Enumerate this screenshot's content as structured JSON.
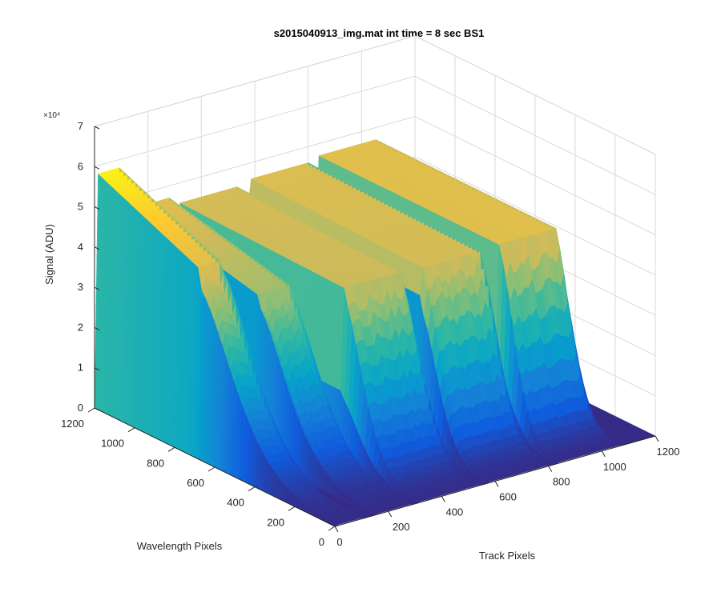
{
  "chart_data": {
    "type": "surface",
    "title": "s2015040913_img.mat int time = 8 sec   BS1",
    "xlabel": "Track Pixels",
    "ylabel": "Wavelength Pixels",
    "zlabel": "Signal (ADU)",
    "z_exponent_label": "×10⁴",
    "xlim": [
      0,
      1200
    ],
    "ylim": [
      0,
      1200
    ],
    "zlim": [
      0,
      70000
    ],
    "x_ticks": [
      "0",
      "200",
      "400",
      "600",
      "800",
      "1000",
      "1200"
    ],
    "y_ticks": [
      "0",
      "200",
      "400",
      "600",
      "800",
      "1000",
      "1200"
    ],
    "z_ticks": [
      "0",
      "1",
      "2",
      "3",
      "4",
      "5",
      "6",
      "7"
    ],
    "grid": true,
    "colormap": "parula",
    "colors": [
      "#352a87",
      "#0f5cdd",
      "#1481d6",
      "#06a4ca",
      "#2eb7a4",
      "#87bf77",
      "#d1bb59",
      "#fec832",
      "#f9fb0e"
    ],
    "tracks": [
      {
        "x_range": [
          0,
          110
        ],
        "peak": 58000,
        "plateau": 47000,
        "falloff_wavelength": 700
      },
      {
        "x_range": [
          150,
          300
        ],
        "peak": 47000,
        "plateau": 40000,
        "falloff_wavelength": 600
      },
      {
        "x_range": [
          300,
          560
        ],
        "peak": 45000,
        "plateau": 44000,
        "falloff_wavelength": 380
      },
      {
        "x_range": [
          560,
          820
        ],
        "peak": 46000,
        "plateau": 45000,
        "falloff_wavelength": 330
      },
      {
        "x_range": [
          820,
          1080
        ],
        "peak": 47000,
        "plateau": 47000,
        "falloff_wavelength": 300
      }
    ]
  }
}
